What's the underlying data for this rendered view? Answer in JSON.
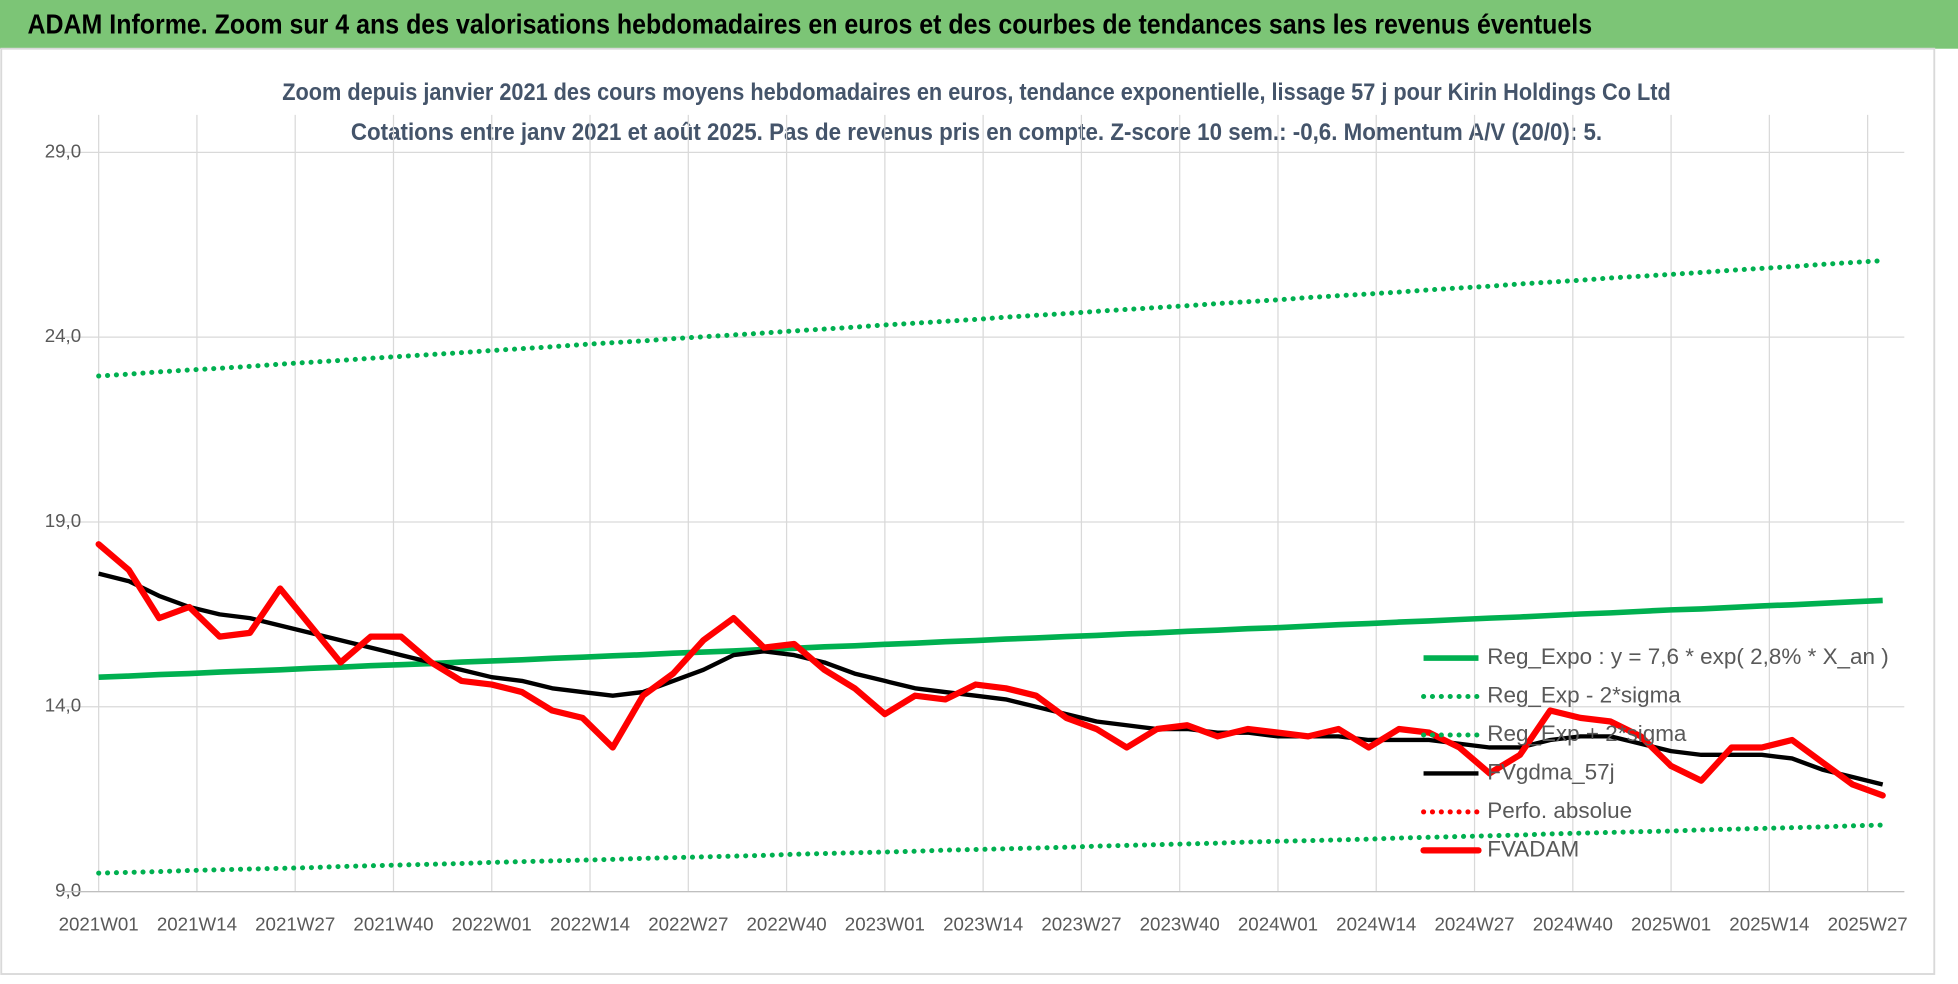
{
  "chart_data": {
    "type": "line",
    "header": "ADAM Informe. Zoom sur 4 ans des valorisations hebdomadaires en euros et des courbes de tendances sans les revenus éventuels",
    "title": "Zoom depuis janvier 2021 des cours moyens hebdomadaires en euros, tendance exponentielle, lissage 57 j pour Kirin Holdings Co Ltd",
    "subtitle": "Cotations entre janv 2021 et août 2025.  Pas de revenus pris en compte. Z-score 10 sem.: -0,6. Momentum A/V (20/0): 5.",
    "x": [
      "2021W01",
      "2021W05",
      "2021W09",
      "2021W13",
      "2021W17",
      "2021W21",
      "2021W25",
      "2021W29",
      "2021W33",
      "2021W37",
      "2021W41",
      "2021W45",
      "2021W49",
      "2022W01",
      "2022W05",
      "2022W09",
      "2022W13",
      "2022W17",
      "2022W21",
      "2022W25",
      "2022W29",
      "2022W33",
      "2022W37",
      "2022W41",
      "2022W45",
      "2022W49",
      "2023W01",
      "2023W05",
      "2023W09",
      "2023W13",
      "2023W17",
      "2023W21",
      "2023W25",
      "2023W29",
      "2023W33",
      "2023W37",
      "2023W41",
      "2023W45",
      "2023W49",
      "2024W01",
      "2024W05",
      "2024W09",
      "2024W13",
      "2024W17",
      "2024W21",
      "2024W25",
      "2024W29",
      "2024W33",
      "2024W37",
      "2024W41",
      "2024W45",
      "2024W49",
      "2025W01",
      "2025W05",
      "2025W09",
      "2025W13",
      "2025W17",
      "2025W21",
      "2025W25",
      "2025W29"
    ],
    "xticks": [
      "2021W01",
      "2021W14",
      "2021W27",
      "2021W40",
      "2022W01",
      "2022W14",
      "2022W27",
      "2022W40",
      "2023W01",
      "2023W14",
      "2023W27",
      "2023W40",
      "2024W01",
      "2024W14",
      "2024W27",
      "2024W40",
      "2025W01",
      "2025W14",
      "2025W27"
    ],
    "ylim": [
      9,
      29
    ],
    "yticks": [
      {
        "value": 9,
        "label": "9,0"
      },
      {
        "value": 14,
        "label": "14,0"
      },
      {
        "value": 19,
        "label": "19,0"
      },
      {
        "value": 24,
        "label": "24,0"
      },
      {
        "value": 29,
        "label": "29,0"
      }
    ],
    "grid": true,
    "legend": "right",
    "series": [
      {
        "name": "Reg_Expo : y = 7,6 * exp( 2,8% *  X_an )",
        "color": "#00b050",
        "style": "solid",
        "values": [
          14.8,
          14.83,
          14.87,
          14.9,
          14.94,
          14.97,
          15.0,
          15.04,
          15.07,
          15.11,
          15.14,
          15.17,
          15.21,
          15.24,
          15.27,
          15.31,
          15.34,
          15.38,
          15.41,
          15.45,
          15.48,
          15.51,
          15.55,
          15.58,
          15.62,
          15.65,
          15.69,
          15.72,
          15.76,
          15.79,
          15.83,
          15.86,
          15.9,
          15.93,
          15.97,
          16.0,
          16.04,
          16.07,
          16.11,
          16.14,
          16.18,
          16.22,
          16.25,
          16.29,
          16.32,
          16.36,
          16.4,
          16.43,
          16.47,
          16.51,
          16.54,
          16.58,
          16.62,
          16.65,
          16.69,
          16.73,
          16.76,
          16.8,
          16.84,
          16.88
        ]
      },
      {
        "name": "Reg_Exp - 2*sigma",
        "color": "#00b050",
        "style": "dotted",
        "values": [
          9.5,
          9.52,
          9.54,
          9.57,
          9.59,
          9.61,
          9.63,
          9.65,
          9.68,
          9.7,
          9.72,
          9.74,
          9.76,
          9.79,
          9.81,
          9.83,
          9.85,
          9.87,
          9.9,
          9.92,
          9.94,
          9.96,
          9.98,
          10.01,
          10.03,
          10.05,
          10.07,
          10.09,
          10.12,
          10.14,
          10.16,
          10.18,
          10.2,
          10.23,
          10.25,
          10.27,
          10.29,
          10.31,
          10.34,
          10.36,
          10.38,
          10.4,
          10.42,
          10.45,
          10.47,
          10.49,
          10.51,
          10.53,
          10.56,
          10.58,
          10.6,
          10.62,
          10.64,
          10.67,
          10.69,
          10.71,
          10.73,
          10.75,
          10.78,
          10.8
        ]
      },
      {
        "name": "Reg_Exp + 2*sigma",
        "color": "#00b050",
        "style": "dotted",
        "values": [
          22.95,
          23.0,
          23.06,
          23.11,
          23.16,
          23.21,
          23.27,
          23.32,
          23.37,
          23.43,
          23.48,
          23.53,
          23.58,
          23.64,
          23.69,
          23.74,
          23.8,
          23.85,
          23.9,
          23.96,
          24.01,
          24.06,
          24.11,
          24.17,
          24.22,
          24.27,
          24.33,
          24.38,
          24.43,
          24.48,
          24.54,
          24.59,
          24.64,
          24.7,
          24.75,
          24.8,
          24.85,
          24.91,
          24.96,
          25.01,
          25.07,
          25.12,
          25.17,
          25.22,
          25.28,
          25.33,
          25.38,
          25.44,
          25.49,
          25.54,
          25.6,
          25.65,
          25.7,
          25.75,
          25.81,
          25.86,
          25.91,
          25.97,
          26.02,
          26.07
        ]
      },
      {
        "name": "FVgdma_57j",
        "color": "#000000",
        "style": "solid",
        "values": [
          17.6,
          17.4,
          17.0,
          16.7,
          16.5,
          16.4,
          16.2,
          16.0,
          15.8,
          15.6,
          15.4,
          15.2,
          15.0,
          14.8,
          14.7,
          14.5,
          14.4,
          14.3,
          14.4,
          14.7,
          15.0,
          15.4,
          15.5,
          15.4,
          15.2,
          14.9,
          14.7,
          14.5,
          14.4,
          14.3,
          14.2,
          14.0,
          13.8,
          13.6,
          13.5,
          13.4,
          13.4,
          13.3,
          13.3,
          13.2,
          13.2,
          13.2,
          13.1,
          13.1,
          13.1,
          13.0,
          12.9,
          12.9,
          13.1,
          13.2,
          13.2,
          13.0,
          12.8,
          12.7,
          12.7,
          12.7,
          12.6,
          12.3,
          12.1,
          11.9
        ]
      },
      {
        "name": "Perfo. absolue",
        "color": "#ff0000",
        "style": "dotted",
        "values": [
          null,
          null,
          null,
          null,
          null,
          null,
          null,
          null,
          null,
          null,
          null,
          null,
          null,
          null,
          null,
          null,
          null,
          null,
          null,
          null,
          null,
          null,
          null,
          null,
          null,
          null,
          null,
          null,
          null,
          null,
          null,
          null,
          null,
          null,
          null,
          null,
          null,
          null,
          null,
          null,
          null,
          null,
          null,
          null,
          null,
          null,
          null,
          null,
          null,
          null,
          null,
          null,
          null,
          null,
          null,
          null,
          null,
          null,
          null,
          null
        ]
      },
      {
        "name": "FVADAM",
        "color": "#ff0000",
        "style": "thick",
        "values": [
          18.4,
          17.7,
          16.4,
          16.7,
          15.9,
          16.0,
          17.2,
          16.2,
          15.2,
          15.9,
          15.9,
          15.2,
          14.7,
          14.6,
          14.4,
          13.9,
          13.7,
          12.9,
          14.3,
          14.9,
          15.8,
          16.4,
          15.6,
          15.7,
          15.0,
          14.5,
          13.8,
          14.3,
          14.2,
          14.6,
          14.5,
          14.3,
          13.7,
          13.4,
          12.9,
          13.4,
          13.5,
          13.2,
          13.4,
          13.3,
          13.2,
          13.4,
          12.9,
          13.4,
          13.3,
          12.9,
          12.2,
          12.7,
          13.9,
          13.7,
          13.6,
          13.2,
          12.4,
          12.0,
          12.9,
          12.9,
          13.1,
          12.5,
          11.9,
          11.6
        ]
      }
    ]
  }
}
